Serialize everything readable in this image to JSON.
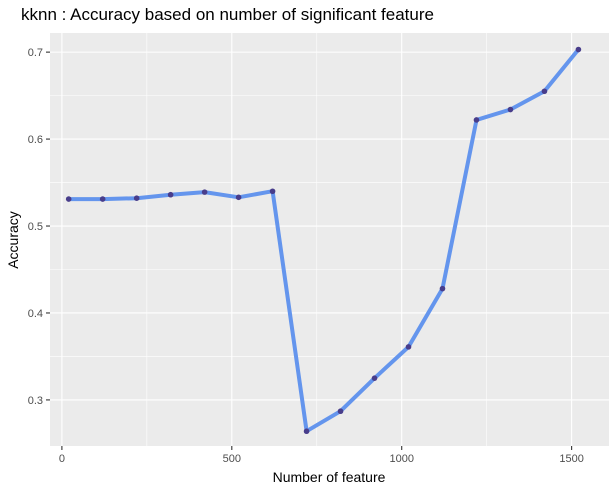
{
  "chart_data": {
    "type": "line",
    "title": "kknn : Accuracy based on number of significant feature",
    "xlabel": "Number of feature",
    "ylabel": "Accuracy",
    "xlim": [
      -35,
      1610
    ],
    "ylim": [
      0.247,
      0.722
    ],
    "x_ticks": [
      0,
      500,
      1000,
      1500
    ],
    "x_tick_labels": [
      "0",
      "500",
      "1000",
      "1500"
    ],
    "y_ticks": [
      0.3,
      0.4,
      0.5,
      0.6,
      0.7
    ],
    "y_tick_labels": [
      "0.3",
      "0.4",
      "0.5",
      "0.6",
      "0.7"
    ],
    "grid": true,
    "legend": "none",
    "colors": {
      "line": "#6495ED",
      "point": "#483D8B",
      "panel": "#EBEBEB",
      "grid": "#FFFFFF"
    },
    "series": [
      {
        "x": [
          20,
          120,
          220,
          320,
          420,
          520,
          620,
          720,
          820,
          920,
          1020,
          1120,
          1220,
          1320,
          1420,
          1520
        ],
        "y": [
          0.531,
          0.531,
          0.532,
          0.536,
          0.539,
          0.533,
          0.54,
          0.264,
          0.287,
          0.325,
          0.361,
          0.428,
          0.622,
          0.634,
          0.655,
          0.703
        ]
      }
    ]
  }
}
